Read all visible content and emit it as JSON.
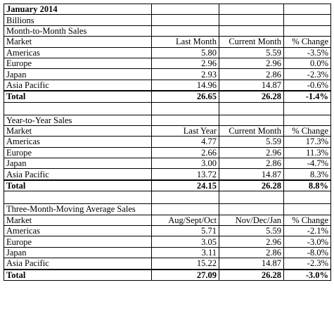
{
  "report": {
    "title": "January 2014",
    "unit": "Billions"
  },
  "sections": [
    {
      "title": "Month-to-Month Sales",
      "headers": [
        "Market",
        "Last Month",
        "Current Month",
        "% Change"
      ],
      "rows": [
        [
          "Americas",
          "5.80",
          "5.59",
          "-3.5%"
        ],
        [
          "Europe",
          "2.96",
          "2.96",
          "0.0%"
        ],
        [
          "Japan",
          "2.93",
          "2.86",
          "-2.3%"
        ],
        [
          "Asia Pacific",
          "14.96",
          "14.87",
          "-0.6%"
        ]
      ],
      "total": [
        "Total",
        "26.65",
        "26.28",
        "-1.4%"
      ]
    },
    {
      "title": "Year-to-Year Sales",
      "headers": [
        "Market",
        "Last Year",
        "Current Month",
        "% Change"
      ],
      "rows": [
        [
          "Americas",
          "4.77",
          "5.59",
          "17.3%"
        ],
        [
          "Europe",
          "2.66",
          "2.96",
          "11.3%"
        ],
        [
          "Japan",
          "3.00",
          "2.86",
          "-4.7%"
        ],
        [
          "Asia Pacific",
          "13.72",
          "14.87",
          "8.3%"
        ]
      ],
      "total": [
        "Total",
        "24.15",
        "26.28",
        "8.8%"
      ]
    },
    {
      "title": "Three-Month-Moving Average Sales",
      "headers": [
        "Market",
        "Aug/Sept/Oct",
        "Nov/Dec/Jan",
        "% Change"
      ],
      "rows": [
        [
          "Americas",
          "5.71",
          "5.59",
          "-2.1%"
        ],
        [
          "Europe",
          "3.05",
          "2.96",
          "-3.0%"
        ],
        [
          "Japan",
          "3.11",
          "2.86",
          "-8.0%"
        ],
        [
          "Asia Pacific",
          "15.22",
          "14.87",
          "-2.3%"
        ]
      ],
      "total": [
        "Total",
        "27.09",
        "26.28",
        "-3.0%"
      ]
    }
  ]
}
